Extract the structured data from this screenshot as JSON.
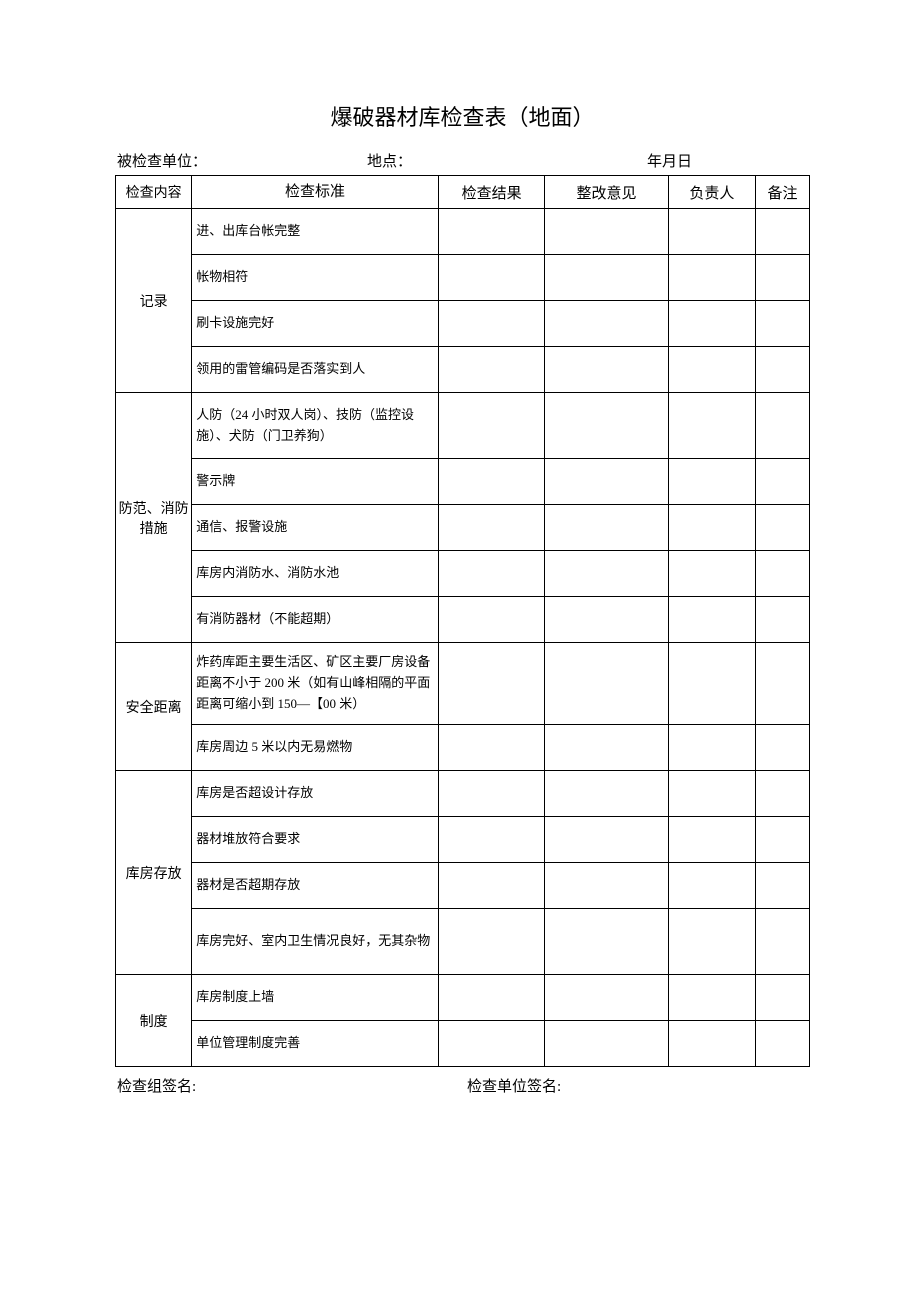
{
  "title": "爆破器材库检查表（地面）",
  "meta": {
    "unit_label": "被检查单位：",
    "location_label": "地点：",
    "date_label": "年月日"
  },
  "headers": {
    "category": "检查内容",
    "standard": "检查标准",
    "result": "检查结果",
    "opinion": "整改意见",
    "person": "负责人",
    "note": "备注"
  },
  "sections": [
    {
      "name": "记录",
      "items": [
        "进、出库台帐完整",
        "帐物相符",
        "刷卡设施完好",
        "领用的雷管编码是否落实到人"
      ]
    },
    {
      "name": "防范、消防措施",
      "items": [
        "人防（24 小时双人岗）、技防（监控设施）、犬防（门卫养狗）",
        "警示牌",
        "通信、报警设施",
        "库房内消防水、消防水池",
        "有消防器材（不能超期）"
      ]
    },
    {
      "name": "安全距离",
      "items": [
        "炸药库距主要生活区、矿区主要厂房设备距离不小于 200 米（如有山峰相隔的平面距离可缩小到 150—【00 米）",
        "库房周边 5 米以内无易燃物"
      ]
    },
    {
      "name": "库房存放",
      "items": [
        "库房是否超设计存放",
        "器材堆放符合要求",
        "器材是否超期存放",
        "库房完好、室内卫生情况良好，无其杂物"
      ]
    },
    {
      "name": "制度",
      "items": [
        "库房制度上墙",
        "单位管理制度完善"
      ]
    }
  ],
  "footer": {
    "group_sign": "检查组签名:",
    "unit_sign": "检查单位签名:"
  },
  "styling": {
    "page_bg": "#ffffff",
    "border_color": "#000000",
    "text_color": "#000000",
    "title_fontsize": 22,
    "body_fontsize": 14,
    "font_family": "SimSun"
  }
}
